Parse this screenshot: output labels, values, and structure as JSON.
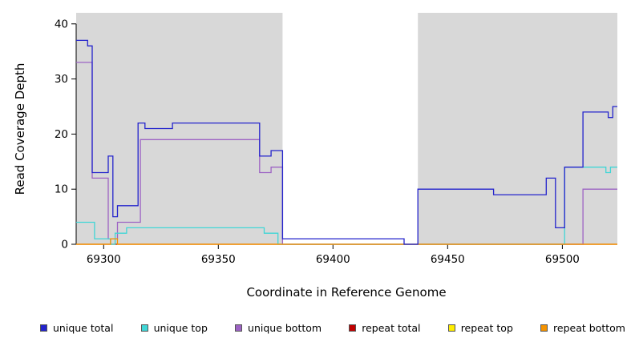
{
  "chart_data": {
    "type": "line",
    "step": true,
    "title": "",
    "xlabel": "Coordinate in Reference Genome",
    "ylabel": "Read Coverage Depth",
    "xlim": [
      69288,
      69524
    ],
    "ylim": [
      0,
      42
    ],
    "x_ticks": [
      69300,
      69350,
      69400,
      69450,
      69500
    ],
    "y_ticks": [
      0,
      10,
      20,
      30,
      40
    ],
    "grid": false,
    "legend_position": "bottom",
    "shaded_regions": [
      {
        "from": 69288,
        "to": 69378,
        "color": "#d8d8d8"
      },
      {
        "from": 69437,
        "to": 69524,
        "color": "#d8d8d8"
      }
    ],
    "series": [
      {
        "name": "unique total",
        "color": "#2323cc",
        "points": [
          [
            69288,
            37
          ],
          [
            69293,
            36
          ],
          [
            69295,
            13
          ],
          [
            69302,
            16
          ],
          [
            69304,
            5
          ],
          [
            69306,
            7
          ],
          [
            69315,
            22
          ],
          [
            69318,
            21
          ],
          [
            69330,
            22
          ],
          [
            69368,
            16
          ],
          [
            69373,
            17
          ],
          [
            69378,
            1
          ],
          [
            69431,
            0
          ],
          [
            69437,
            10
          ],
          [
            69470,
            9
          ],
          [
            69493,
            12
          ],
          [
            69497,
            3
          ],
          [
            69501,
            14
          ],
          [
            69509,
            24
          ],
          [
            69520,
            23
          ],
          [
            69522,
            25
          ]
        ]
      },
      {
        "name": "unique top",
        "color": "#40d6d6",
        "points": [
          [
            69288,
            4
          ],
          [
            69296,
            1
          ],
          [
            69303,
            0
          ],
          [
            69305,
            2
          ],
          [
            69310,
            3
          ],
          [
            69370,
            2
          ],
          [
            69376,
            0
          ],
          [
            69501,
            14
          ],
          [
            69519,
            13
          ],
          [
            69521,
            14
          ]
        ]
      },
      {
        "name": "unique bottom",
        "color": "#9d63c4",
        "points": [
          [
            69288,
            33
          ],
          [
            69295,
            12
          ],
          [
            69302,
            1
          ],
          [
            69306,
            4
          ],
          [
            69316,
            19
          ],
          [
            69368,
            13
          ],
          [
            69373,
            14
          ],
          [
            69378,
            0
          ],
          [
            69509,
            10
          ]
        ]
      },
      {
        "name": "repeat total",
        "color": "#c00000",
        "points": [
          [
            69288,
            0
          ]
        ]
      },
      {
        "name": "repeat top",
        "color": "#ffee00",
        "points": [
          [
            69288,
            0
          ]
        ]
      },
      {
        "name": "repeat bottom",
        "color": "#f59300",
        "points": [
          [
            69288,
            0
          ],
          [
            69303,
            1
          ],
          [
            69306,
            0
          ]
        ]
      }
    ],
    "draw_order": [
      "repeat top",
      "repeat total",
      "unique bottom",
      "unique top",
      "repeat bottom",
      "unique total"
    ]
  }
}
